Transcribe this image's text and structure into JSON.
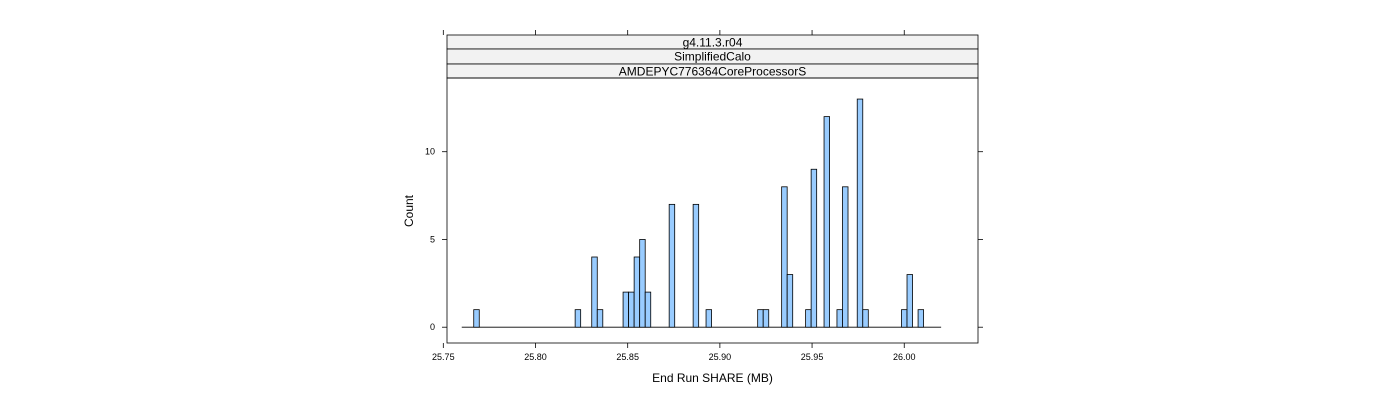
{
  "chart_data": {
    "type": "bar",
    "strips": [
      "g4.11.3.r04",
      "SimplifiedCalo",
      "AMDEPYC776364CoreProcessorS"
    ],
    "xlabel": "End Run SHARE (MB)",
    "ylabel": "Count",
    "xlim": [
      25.752,
      26.04
    ],
    "ylim": [
      -0.9,
      14.2
    ],
    "bar_width": 0.003,
    "baseline_range": [
      25.76,
      26.02
    ],
    "x_ticks": [
      "25.75",
      "25.80",
      "25.85",
      "25.90",
      "25.95",
      "26.00"
    ],
    "y_ticks": [
      "0",
      "5",
      "10"
    ],
    "bar_color": "#99ccff",
    "bars": [
      {
        "x": 25.768,
        "count": 1
      },
      {
        "x": 25.823,
        "count": 1
      },
      {
        "x": 25.832,
        "count": 4
      },
      {
        "x": 25.835,
        "count": 1
      },
      {
        "x": 25.849,
        "count": 2
      },
      {
        "x": 25.852,
        "count": 2
      },
      {
        "x": 25.855,
        "count": 4
      },
      {
        "x": 25.858,
        "count": 5
      },
      {
        "x": 25.861,
        "count": 2
      },
      {
        "x": 25.874,
        "count": 7
      },
      {
        "x": 25.887,
        "count": 7
      },
      {
        "x": 25.894,
        "count": 1
      },
      {
        "x": 25.922,
        "count": 1
      },
      {
        "x": 25.925,
        "count": 1
      },
      {
        "x": 25.935,
        "count": 8
      },
      {
        "x": 25.938,
        "count": 3
      },
      {
        "x": 25.948,
        "count": 1
      },
      {
        "x": 25.951,
        "count": 9
      },
      {
        "x": 25.958,
        "count": 12
      },
      {
        "x": 25.965,
        "count": 1
      },
      {
        "x": 25.968,
        "count": 8
      },
      {
        "x": 25.976,
        "count": 13
      },
      {
        "x": 25.979,
        "count": 1
      },
      {
        "x": 26.0,
        "count": 1
      },
      {
        "x": 26.003,
        "count": 3
      },
      {
        "x": 26.009,
        "count": 1
      }
    ]
  }
}
